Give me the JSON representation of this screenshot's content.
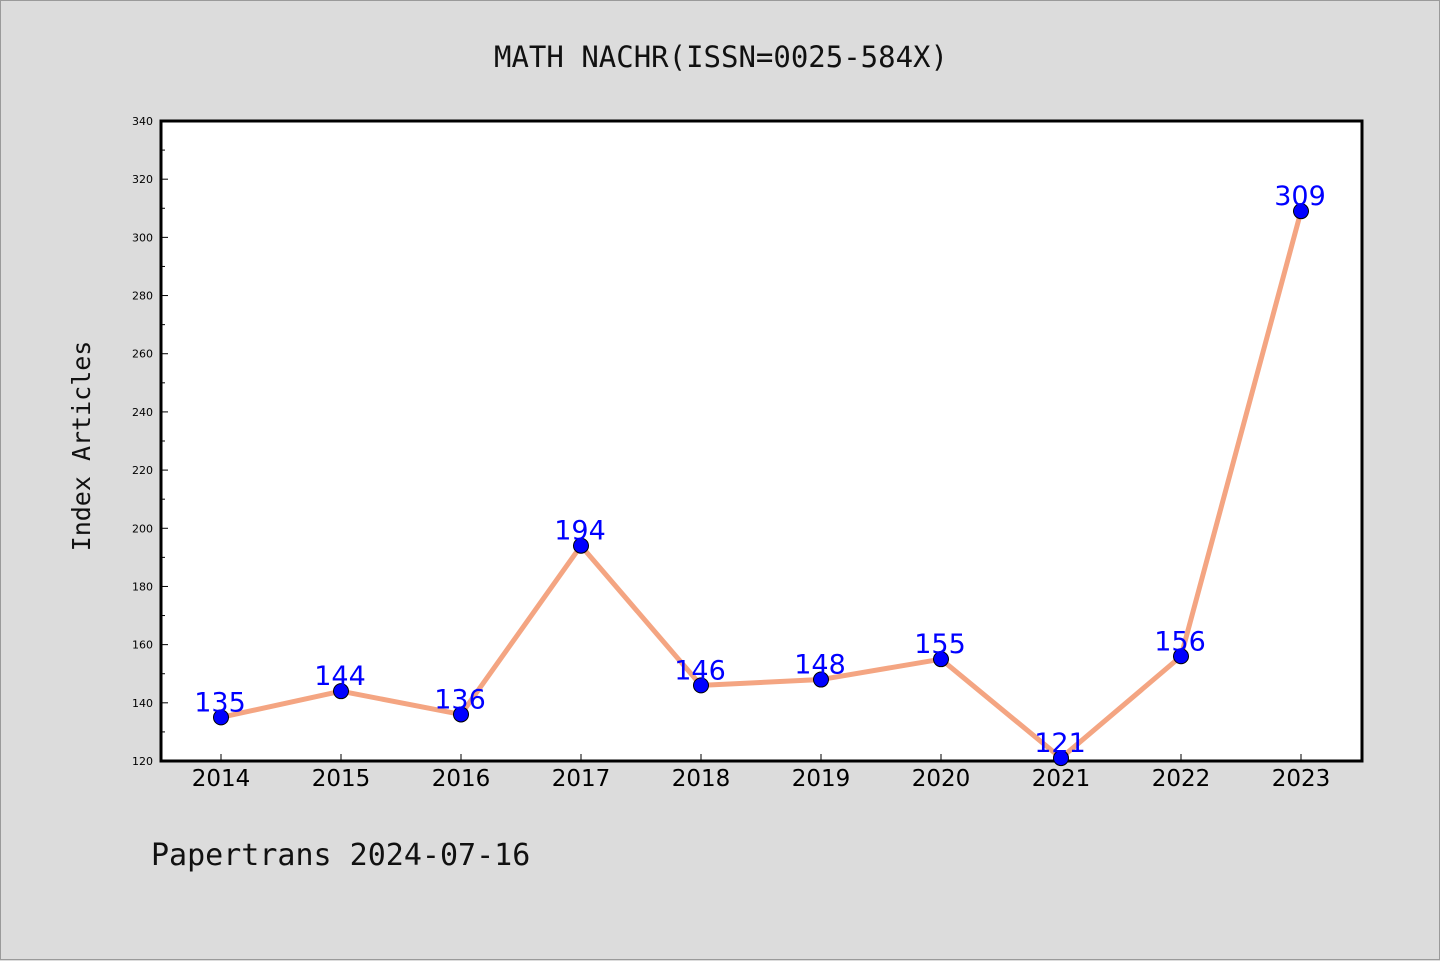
{
  "chart_data": {
    "type": "line",
    "title": "MATH NACHR(ISSN=0025-584X)",
    "ylabel": "Index Articles",
    "xlabel": "",
    "categories": [
      "2014",
      "2015",
      "2016",
      "2017",
      "2018",
      "2019",
      "2020",
      "2021",
      "2022",
      "2023"
    ],
    "series": [
      {
        "values": [
          135,
          144,
          136,
          194,
          146,
          148,
          155,
          121,
          156,
          309
        ]
      }
    ],
    "data_labels": [
      "135",
      "144",
      "136",
      "194",
      "146",
      "148",
      "155",
      "121",
      "156",
      "309"
    ],
    "ylim": [
      120,
      340
    ],
    "y_ticks": [
      "120",
      "140",
      "160",
      "180",
      "200",
      "220",
      "240",
      "260",
      "280",
      "300",
      "320",
      "340"
    ],
    "grid": false,
    "legend": "none",
    "colors": {
      "background": "#dcdcdc",
      "plot_background": "#ffffff",
      "line": "#f4a582",
      "marker": "#0000ff",
      "data_label": "#0000ff",
      "axis": "#000000"
    }
  },
  "footer": {
    "text": "Papertrans 2024-07-16"
  }
}
